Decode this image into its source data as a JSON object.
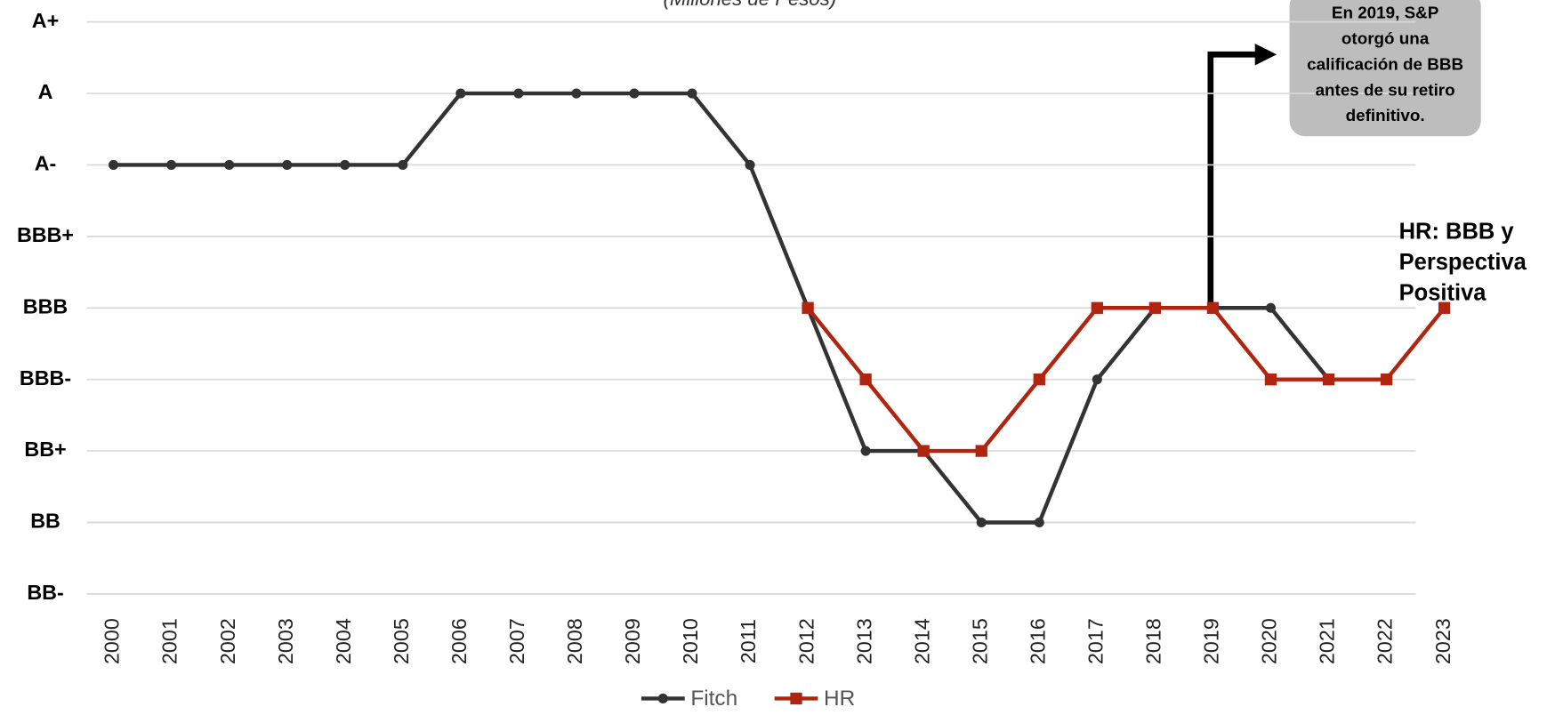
{
  "chart_data": {
    "type": "line",
    "subtitle": "(Millones de Pesos)",
    "categories": [
      "2000",
      "2001",
      "2002",
      "2003",
      "2004",
      "2005",
      "2006",
      "2007",
      "2008",
      "2009",
      "2010",
      "2011",
      "2012",
      "2013",
      "2014",
      "2015",
      "2016",
      "2017",
      "2018",
      "2019",
      "2020",
      "2021",
      "2022",
      "2023"
    ],
    "series": [
      {
        "name": "Fitch",
        "color": "#333333",
        "marker": "circle",
        "values": [
          6,
          6,
          6,
          6,
          6,
          6,
          7,
          7,
          7,
          7,
          7,
          6,
          4,
          2,
          2,
          1,
          1,
          3,
          4,
          4,
          4,
          3,
          null,
          null
        ]
      },
      {
        "name": "HR",
        "color": "#b0250f",
        "marker": "square",
        "values": [
          null,
          null,
          null,
          null,
          null,
          null,
          null,
          null,
          null,
          null,
          null,
          null,
          4,
          3,
          2,
          2,
          3,
          4,
          4,
          4,
          3,
          3,
          3,
          4
        ]
      }
    ],
    "ylim": [
      0,
      8
    ],
    "yticks": [
      {
        "value": 0,
        "label": "BB-"
      },
      {
        "value": 1,
        "label": "BB"
      },
      {
        "value": 2,
        "label": "BB+"
      },
      {
        "value": 3,
        "label": "BBB-"
      },
      {
        "value": 4,
        "label": "BBB"
      },
      {
        "value": 5,
        "label": "BBB+"
      },
      {
        "value": 6,
        "label": "A-"
      },
      {
        "value": 7,
        "label": "A"
      },
      {
        "value": 8,
        "label": "A+"
      }
    ],
    "grid": true,
    "legend": "bottom",
    "annotations": [
      {
        "lines": [
          "En 2019, S&P",
          "otorgó una",
          "calificación de BBB",
          "antes de su retiro",
          "definitivo."
        ]
      },
      {
        "lines": [
          "HR: BBB y",
          "Perspectiva",
          "Positiva"
        ]
      }
    ]
  }
}
